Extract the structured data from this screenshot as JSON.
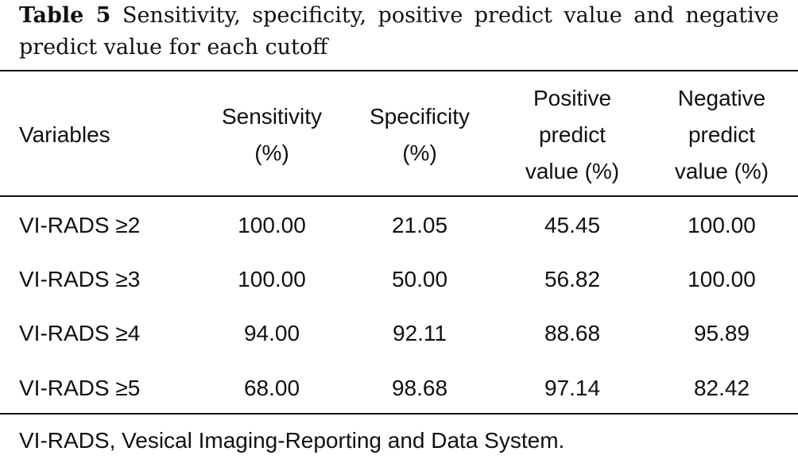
{
  "caption": {
    "label": "Table 5",
    "text": "Sensitivity, specificity, positive predict value and negative predict value for each cutoff"
  },
  "table": {
    "headers": [
      [
        "Variables"
      ],
      [
        "Sensitivity",
        "(%)"
      ],
      [
        "Specificity",
        "(%)"
      ],
      [
        "Positive",
        "predict",
        "value (%)"
      ],
      [
        "Negative",
        "predict",
        "value (%)"
      ]
    ],
    "rows": [
      [
        "VI-RADS ≥2",
        "100.00",
        "21.05",
        "45.45",
        "100.00"
      ],
      [
        "VI-RADS ≥3",
        "100.00",
        "50.00",
        "56.82",
        "100.00"
      ],
      [
        "VI-RADS ≥4",
        "94.00",
        "92.11",
        "88.68",
        "95.89"
      ],
      [
        "VI-RADS ≥5",
        "68.00",
        "98.68",
        "97.14",
        "82.42"
      ]
    ]
  },
  "footnote": "VI-RADS, Vesical Imaging-Reporting and Data System."
}
